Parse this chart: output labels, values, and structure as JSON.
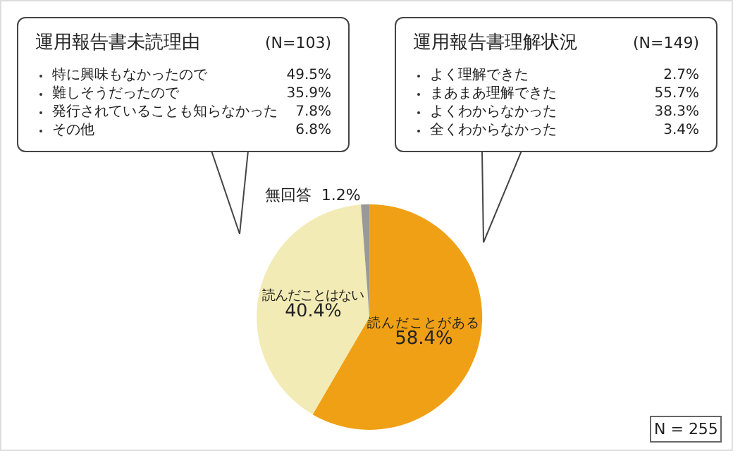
{
  "chart_data": [
    {
      "type": "other",
      "title": "運用報告書未読理由",
      "subtitle": "(N=103)",
      "categories": [
        "特に興味もなかったので",
        "難しそうだったので",
        "発行されていることも知らなかった",
        "その他"
      ],
      "value_labels": [
        "49.5%",
        "35.9%",
        "7.8%",
        "6.8%"
      ]
    },
    {
      "type": "other",
      "title": "運用報告書理解状況",
      "subtitle": "(N=149)",
      "categories": [
        "よく理解できた",
        "まあまあ理解できた",
        "よくわからなかった",
        "全くわからなかった"
      ],
      "value_labels": [
        "2.7%",
        "55.7%",
        "38.3%",
        "3.4%"
      ]
    },
    {
      "type": "pie",
      "categories": [
        "読んだことがある",
        "読んだことはない",
        "無回答"
      ],
      "values": [
        58.4,
        40.4,
        1.2
      ],
      "value_labels": [
        "58.4%",
        "40.4%",
        "1.2%"
      ],
      "colors": [
        "#f0a014",
        "#f2ebb5",
        "#999999"
      ],
      "annotations": [
        "N = 255"
      ]
    }
  ]
}
